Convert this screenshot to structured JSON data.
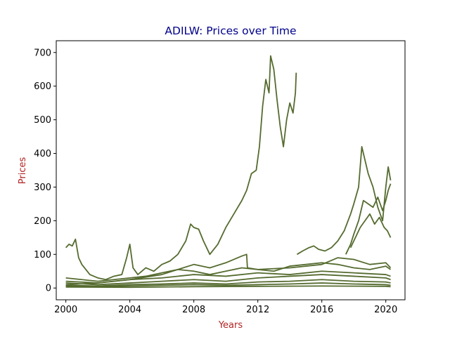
{
  "chart_data": {
    "type": "line",
    "title": "ADILW: Prices over Time",
    "xlabel": "Years",
    "ylabel": "Prices",
    "xlim": [
      1999.4,
      2021.2
    ],
    "ylim": [
      -35,
      735
    ],
    "xticks": [
      2000,
      2004,
      2008,
      2012,
      2016,
      2020
    ],
    "yticks": [
      0,
      100,
      200,
      300,
      400,
      500,
      600,
      700
    ],
    "grid": false,
    "legend": "none",
    "colors": {
      "line": "#556b2f",
      "title": "#00008b",
      "axis_label": "#b22222"
    },
    "series": [
      {
        "x": [
          2000.0,
          2000.2,
          2000.4,
          2000.6,
          2000.8,
          2001.0,
          2001.5,
          2002.0,
          2002.5,
          2003.0,
          2003.5,
          2003.8,
          2004.0,
          2004.2,
          2004.5,
          2005.0,
          2005.5,
          2006.0,
          2006.5,
          2007.0,
          2007.5,
          2007.8,
          2008.0,
          2008.3,
          2008.6,
          2009.0,
          2009.5,
          2010.0,
          2010.5,
          2011.0,
          2011.3,
          2011.6,
          2011.9,
          2012.1,
          2012.3,
          2012.5,
          2012.7,
          2012.8,
          2013.0,
          2013.2,
          2013.4,
          2013.6,
          2013.8,
          2014.0,
          2014.2,
          2014.35,
          2014.4
        ],
        "values": [
          120,
          130,
          125,
          145,
          90,
          70,
          40,
          30,
          25,
          35,
          40,
          90,
          130,
          60,
          40,
          60,
          50,
          70,
          80,
          100,
          140,
          190,
          180,
          175,
          140,
          100,
          130,
          180,
          220,
          260,
          290,
          340,
          350,
          420,
          540,
          620,
          580,
          690,
          650,
          560,
          480,
          420,
          500,
          550,
          520,
          580,
          640
        ]
      },
      {
        "x": [
          2014.45,
          2014.8,
          2015.2,
          2015.5,
          2015.8,
          2016.2,
          2016.6,
          2017.0,
          2017.4,
          2017.8,
          2018.0,
          2018.3,
          2018.5,
          2018.7,
          2018.9,
          2019.2,
          2019.5,
          2019.8,
          2020.0,
          2020.15,
          2020.3
        ],
        "values": [
          100,
          110,
          120,
          125,
          115,
          110,
          120,
          140,
          170,
          220,
          250,
          300,
          420,
          380,
          340,
          300,
          240,
          200,
          300,
          360,
          320
        ]
      },
      {
        "x": [
          2017.5,
          2017.8,
          2018.0,
          2018.3,
          2018.6,
          2018.9,
          2019.2,
          2019.5,
          2019.8,
          2020.0,
          2020.15,
          2020.3
        ],
        "values": [
          100,
          130,
          160,
          200,
          260,
          250,
          240,
          270,
          230,
          260,
          290,
          310
        ]
      },
      {
        "x": [
          2017.8,
          2018.1,
          2018.4,
          2018.7,
          2019.0,
          2019.3,
          2019.6,
          2019.9,
          2020.1,
          2020.3
        ],
        "values": [
          120,
          150,
          180,
          200,
          220,
          190,
          210,
          180,
          170,
          150
        ]
      },
      {
        "x": [
          2000.0,
          2002.0,
          2004.0,
          2006.0,
          2008.0,
          2009.0,
          2010.0,
          2011.0,
          2011.3,
          2011.35,
          2012.0,
          2014.0,
          2016.0,
          2017.0,
          2018.0,
          2019.0,
          2020.0,
          2020.3
        ],
        "values": [
          10,
          15,
          25,
          40,
          70,
          60,
          75,
          95,
          100,
          60,
          55,
          60,
          70,
          90,
          85,
          70,
          75,
          60
        ]
      },
      {
        "x": [
          2000.0,
          2001.0,
          2002.0,
          2003.0,
          2004.0,
          2005.0,
          2006.0,
          2007.0,
          2008.0,
          2009.0,
          2010.0,
          2011.0,
          2012.0,
          2013.0,
          2014.0,
          2015.0,
          2016.0,
          2017.0,
          2018.0,
          2019.0,
          2020.0,
          2020.3
        ],
        "values": [
          30,
          25,
          20,
          25,
          30,
          35,
          45,
          55,
          50,
          40,
          50,
          60,
          55,
          50,
          65,
          70,
          75,
          70,
          60,
          55,
          65,
          55
        ]
      },
      {
        "x": [
          2000.0,
          2002.0,
          2004.0,
          2006.0,
          2008.0,
          2010.0,
          2012.0,
          2014.0,
          2016.0,
          2018.0,
          2020.0,
          2020.3
        ],
        "values": [
          20,
          15,
          25,
          30,
          40,
          35,
          45,
          40,
          50,
          45,
          40,
          35
        ]
      },
      {
        "x": [
          2000.0,
          2002.0,
          2004.0,
          2006.0,
          2008.0,
          2010.0,
          2012.0,
          2014.0,
          2016.0,
          2018.0,
          2020.0,
          2020.3
        ],
        "values": [
          15,
          10,
          15,
          20,
          25,
          20,
          30,
          35,
          40,
          35,
          30,
          25
        ]
      },
      {
        "x": [
          2000.0,
          2002.0,
          2004.0,
          2006.0,
          2008.0,
          2010.0,
          2012.0,
          2014.0,
          2016.0,
          2018.0,
          2020.0,
          2020.3
        ],
        "values": [
          8,
          6,
          10,
          12,
          15,
          12,
          18,
          20,
          25,
          20,
          18,
          15
        ]
      },
      {
        "x": [
          2000.0,
          2002.0,
          2004.0,
          2006.0,
          2008.0,
          2010.0,
          2012.0,
          2014.0,
          2016.0,
          2018.0,
          2020.0,
          2020.3
        ],
        "values": [
          5,
          4,
          6,
          8,
          10,
          8,
          10,
          12,
          15,
          12,
          10,
          8
        ]
      },
      {
        "x": [
          2000.0,
          2004.0,
          2008.0,
          2012.0,
          2016.0,
          2020.0,
          2020.3
        ],
        "values": [
          3,
          2,
          4,
          5,
          6,
          5,
          4
        ]
      }
    ]
  }
}
